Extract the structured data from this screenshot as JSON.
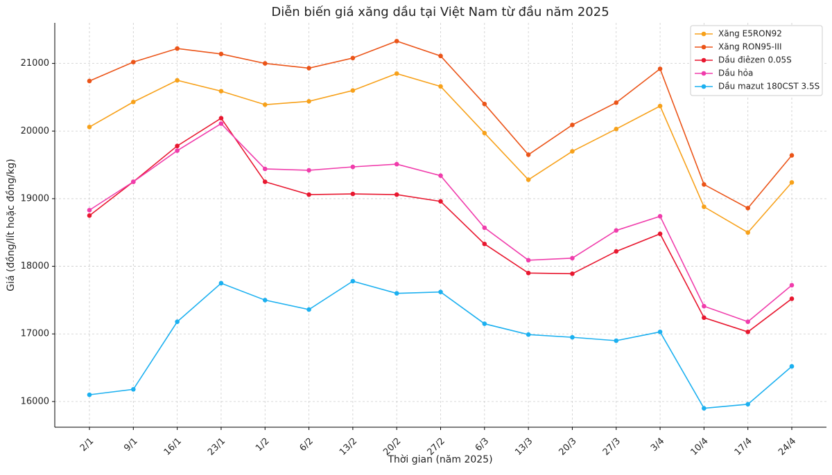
{
  "chart_data": {
    "type": "line",
    "title": "Diễn biến giá xăng dầu tại Việt Nam từ đầu năm 2025",
    "x_label": "Thời gian (năm 2025)",
    "y_label": "Giá (đồng/lít hoặc đồng/kg)",
    "categories": [
      "2/1",
      "9/1",
      "16/1",
      "23/1",
      "1/2",
      "6/2",
      "13/2",
      "20/2",
      "27/2",
      "6/3",
      "13/3",
      "20/3",
      "27/3",
      "3/4",
      "10/4",
      "17/4",
      "24/4"
    ],
    "series": [
      {
        "name": "Xăng E5RON92",
        "color": "#f7a11a",
        "values": [
          20060,
          20430,
          20750,
          20590,
          20390,
          20440,
          20600,
          20850,
          20660,
          19970,
          19280,
          19700,
          20030,
          20370,
          18880,
          18500,
          19240
        ]
      },
      {
        "name": "Xăng RON95-III",
        "color": "#eb5418",
        "values": [
          20740,
          21020,
          21220,
          21140,
          21000,
          20930,
          21080,
          21330,
          21110,
          20400,
          19650,
          20090,
          20420,
          20920,
          19210,
          18860,
          19640
        ]
      },
      {
        "name": "Dầu điêzen 0.05S",
        "color": "#e8172f",
        "values": [
          18750,
          19250,
          19780,
          20190,
          19250,
          19060,
          19070,
          19060,
          18960,
          18330,
          17900,
          17890,
          18220,
          18480,
          17240,
          17030,
          17520
        ]
      },
      {
        "name": "Dầu hỏa",
        "color": "#f03cab",
        "values": [
          18830,
          19250,
          19710,
          20110,
          19440,
          19420,
          19470,
          19510,
          19340,
          18570,
          18090,
          18120,
          18530,
          18740,
          17410,
          17180,
          17720
        ]
      },
      {
        "name": "Dầu mazut 180CST 3.5S",
        "color": "#1bb0f0",
        "values": [
          16100,
          16180,
          17180,
          17750,
          17500,
          17360,
          17780,
          17600,
          17620,
          17150,
          16990,
          16950,
          16900,
          17030,
          15900,
          15960,
          16520
        ]
      }
    ],
    "ylim": [
      15620,
      21600
    ],
    "yticks": [
      16000,
      17000,
      18000,
      19000,
      20000,
      21000
    ],
    "grid": true,
    "legend": "upper right"
  }
}
